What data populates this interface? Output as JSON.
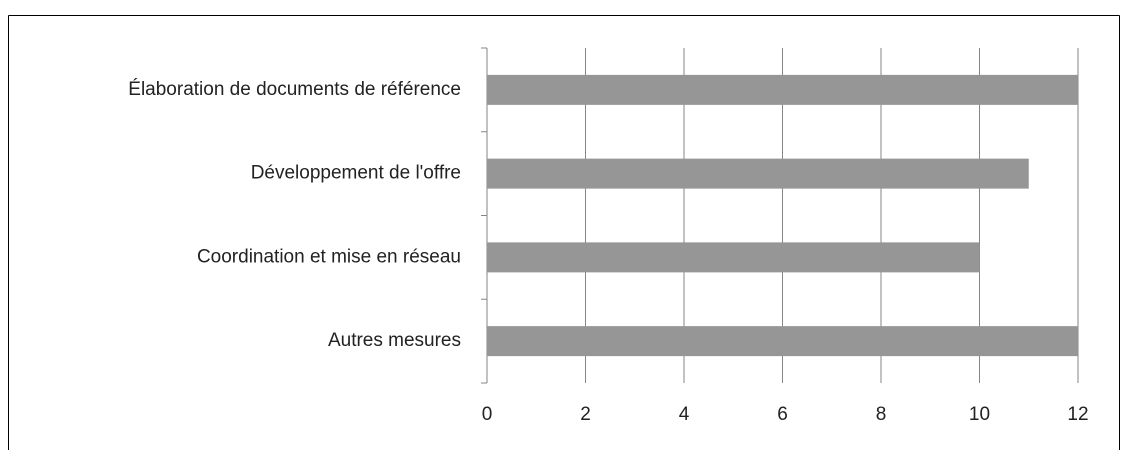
{
  "chart_data": {
    "type": "barh",
    "categories": [
      "Élaboration de documents de référence",
      "Développement de l'offre",
      "Coordination et mise en réseau",
      "Autres mesures"
    ],
    "values": [
      12,
      11,
      10,
      12
    ],
    "color": "#969696",
    "xlim": [
      0,
      12
    ],
    "xticks": [
      0,
      2,
      4,
      6,
      8,
      10,
      12
    ],
    "grid": true
  }
}
